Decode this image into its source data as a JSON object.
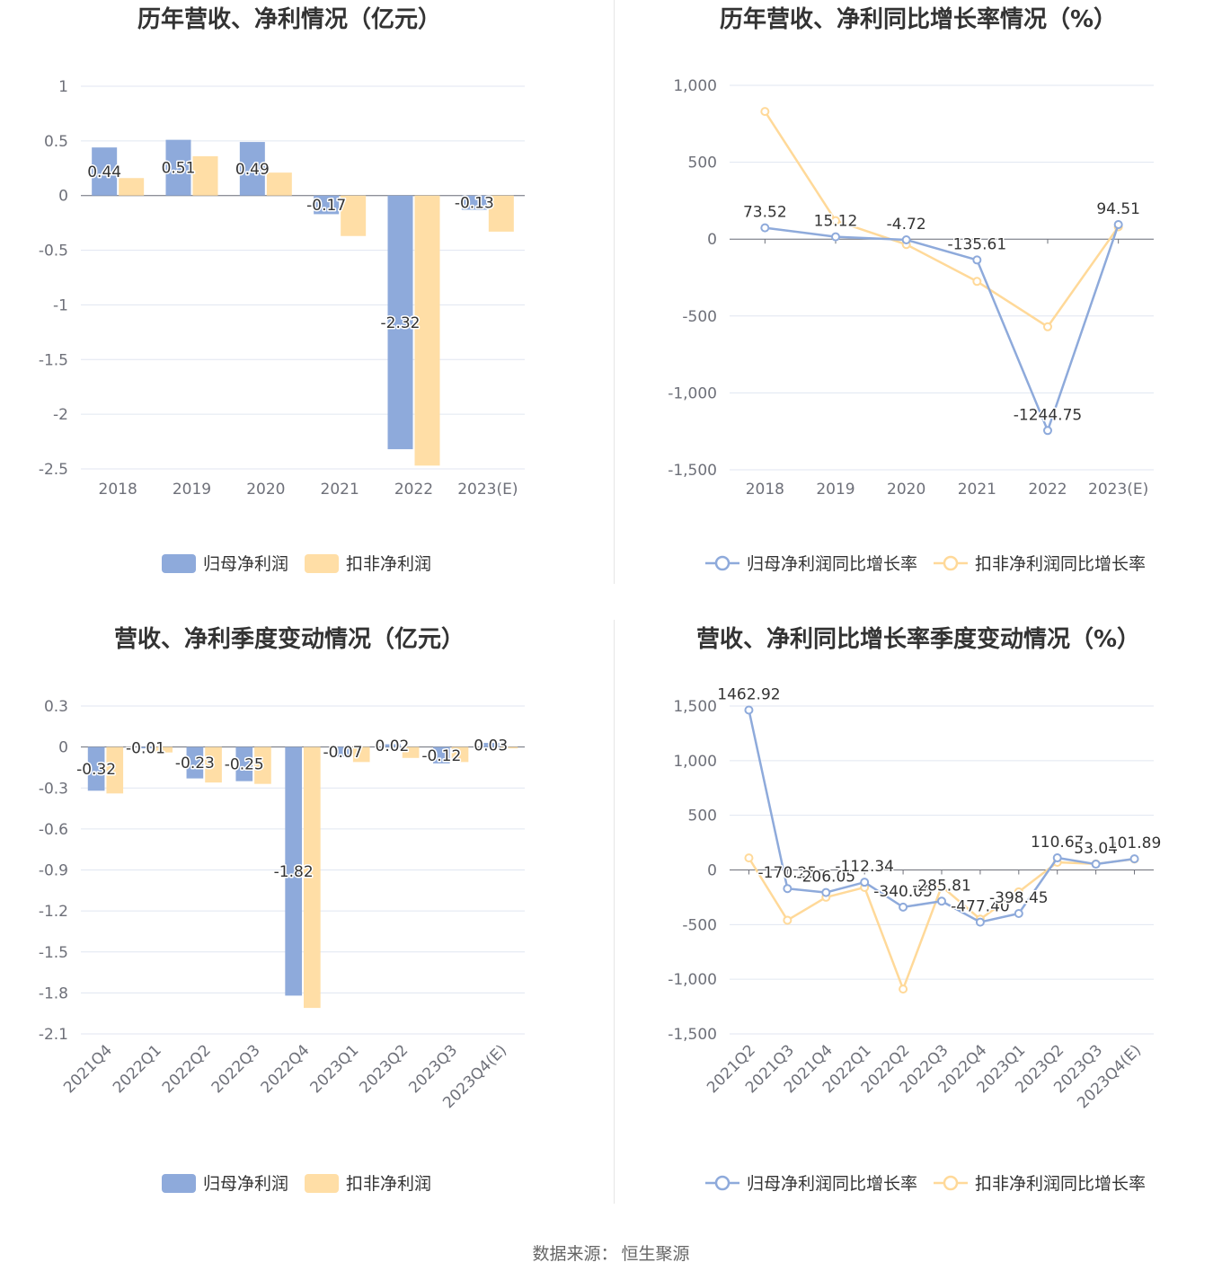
{
  "colors": {
    "series_blue": "#8eaadb",
    "series_orange": "#ffd999",
    "bar_orange": "#ffdea6",
    "grid": "#e0e6f1",
    "axis": "#6e7079",
    "text": "#333333"
  },
  "footer": {
    "source_label": "数据来源：",
    "source_name": "恒生聚源"
  },
  "chart_data": [
    {
      "id": "annual_profit",
      "type": "bar",
      "title": "历年营收、净利情况（亿元）",
      "categories": [
        "2018",
        "2019",
        "2020",
        "2021",
        "2022",
        "2023(E)"
      ],
      "yticks": [
        "1",
        "0.5",
        "0",
        "-0.5",
        "-1",
        "-1.5",
        "-2",
        "-2.5"
      ],
      "ylim": [
        -2.5,
        1
      ],
      "ystep": 0.5,
      "grid": true,
      "legend_position": "bottom-center",
      "series": [
        {
          "name": "归母净利润",
          "values": [
            0.44,
            0.51,
            0.49,
            -0.17,
            -2.32,
            -0.13
          ],
          "labels": [
            "0.44",
            "0.51",
            "0.49",
            "-0.17",
            "-2.32",
            "-0.13"
          ]
        },
        {
          "name": "扣非净利润",
          "values": [
            0.16,
            0.36,
            0.21,
            -0.37,
            -2.47,
            -0.33
          ]
        }
      ]
    },
    {
      "id": "annual_growth",
      "type": "line",
      "title": "历年营收、净利同比增长率情况（%）",
      "categories": [
        "2018",
        "2019",
        "2020",
        "2021",
        "2022",
        "2023(E)"
      ],
      "yticks": [
        "1,000",
        "500",
        "0",
        "-500",
        "-1,000",
        "-1,500"
      ],
      "ylim": [
        -1500,
        1000
      ],
      "ystep": 500,
      "grid": true,
      "legend_position": "bottom-center",
      "series": [
        {
          "name": "归母净利润同比增长率",
          "values": [
            73.52,
            15.12,
            -4.72,
            -135.61,
            -1244.75,
            94.51
          ],
          "labels": [
            "73.52",
            "15.12",
            "-4.72",
            "-135.61",
            "-1244.75",
            "94.51"
          ]
        },
        {
          "name": "扣非净利润同比增长率",
          "values": [
            830,
            120,
            -35,
            -275,
            -570,
            80
          ]
        }
      ]
    },
    {
      "id": "quarterly_profit",
      "type": "bar",
      "title": "营收、净利季度变动情况（亿元）",
      "categories": [
        "2021Q4",
        "2022Q1",
        "2022Q2",
        "2022Q3",
        "2022Q4",
        "2023Q1",
        "2023Q2",
        "2023Q3",
        "2023Q4(E)"
      ],
      "yticks": [
        "0.3",
        "0",
        "-0.3",
        "-0.6",
        "-0.9",
        "-1.2",
        "-1.5",
        "-1.8",
        "-2.1"
      ],
      "ylim": [
        -2.1,
        0.3
      ],
      "ystep": 0.3,
      "grid": true,
      "legend_position": "bottom-center",
      "series": [
        {
          "name": "归母净利润",
          "values": [
            -0.32,
            -0.01,
            -0.23,
            -0.25,
            -1.82,
            -0.07,
            0.02,
            -0.12,
            0.03
          ],
          "labels": [
            "-0.32",
            "-0.01",
            "-0.23",
            "-0.25",
            "-1.82",
            "-0.07",
            "0.02",
            "-0.12",
            "0.03"
          ]
        },
        {
          "name": "扣非净利润",
          "values": [
            -0.34,
            -0.04,
            -0.26,
            -0.27,
            -1.91,
            -0.11,
            -0.08,
            -0.11,
            -0.01
          ]
        }
      ]
    },
    {
      "id": "quarterly_growth",
      "type": "line",
      "title": "营收、净利同比增长率季度变动情况（%）",
      "categories": [
        "2021Q2",
        "2021Q3",
        "2021Q4",
        "2022Q1",
        "2022Q2",
        "2022Q3",
        "2022Q4",
        "2023Q1",
        "2023Q2",
        "2023Q3",
        "2023Q4(E)"
      ],
      "yticks": [
        "1,500",
        "1,000",
        "500",
        "0",
        "-500",
        "-1,000",
        "-1,500"
      ],
      "ylim": [
        -1500,
        1500
      ],
      "ystep": 500,
      "grid": true,
      "legend_position": "bottom-center",
      "series": [
        {
          "name": "归母净利润同比增长率",
          "values": [
            1462.92,
            -170.25,
            -206.05,
            -112.34,
            -340.05,
            -285.81,
            -477.4,
            -398.45,
            110.67,
            53.04,
            101.89
          ],
          "labels": [
            "1462.92",
            "-170.25",
            "-206.05",
            "-112.34",
            "-340.05",
            "-285.81",
            "-477.40",
            "-398.45",
            "110.67",
            "53.04",
            "101.89"
          ]
        },
        {
          "name": "扣非净利润同比增长率",
          "values": [
            110,
            -460,
            -250,
            -160,
            -1090,
            -150,
            -450,
            -200,
            70,
            55,
            100
          ]
        }
      ]
    }
  ]
}
